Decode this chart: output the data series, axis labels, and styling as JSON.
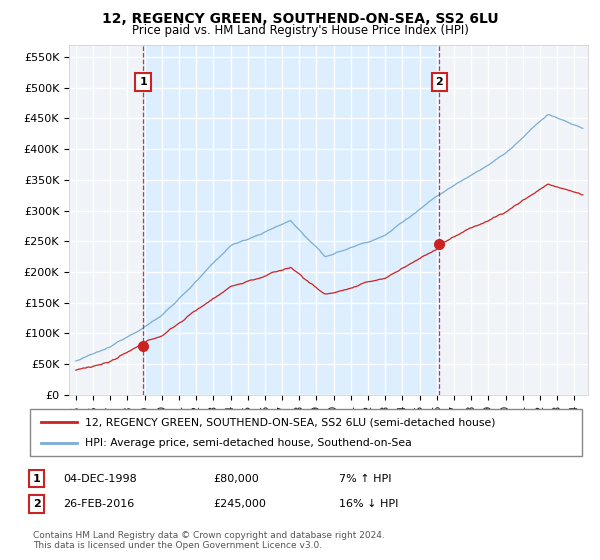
{
  "title": "12, REGENCY GREEN, SOUTHEND-ON-SEA, SS2 6LU",
  "subtitle": "Price paid vs. HM Land Registry's House Price Index (HPI)",
  "ylabel_ticks": [
    "£0",
    "£50K",
    "£100K",
    "£150K",
    "£200K",
    "£250K",
    "£300K",
    "£350K",
    "£400K",
    "£450K",
    "£500K",
    "£550K"
  ],
  "ytick_values": [
    0,
    50000,
    100000,
    150000,
    200000,
    250000,
    300000,
    350000,
    400000,
    450000,
    500000,
    550000
  ],
  "xlim": [
    1994.6,
    2024.8
  ],
  "ylim": [
    0,
    570000
  ],
  "sale1_year": 1998.92,
  "sale1_price": 80000,
  "sale2_year": 2016.15,
  "sale2_price": 245000,
  "hpi_color": "#7aadd4",
  "price_color": "#cc2222",
  "vline_color": "#cc2222",
  "shade_color": "#ddeeff",
  "background_color": "#ffffff",
  "plot_bg_color": "#f0f4f8",
  "grid_color": "#ffffff",
  "legend_entries": [
    "12, REGENCY GREEN, SOUTHEND-ON-SEA, SS2 6LU (semi-detached house)",
    "HPI: Average price, semi-detached house, Southend-on-Sea"
  ],
  "footer": "Contains HM Land Registry data © Crown copyright and database right 2024.\nThis data is licensed under the Open Government Licence v3.0.",
  "xtick_years": [
    1995,
    1996,
    1997,
    1998,
    1999,
    2000,
    2001,
    2002,
    2003,
    2004,
    2005,
    2006,
    2007,
    2008,
    2009,
    2010,
    2011,
    2012,
    2013,
    2014,
    2015,
    2016,
    2017,
    2018,
    2019,
    2020,
    2021,
    2022,
    2023,
    2024
  ]
}
